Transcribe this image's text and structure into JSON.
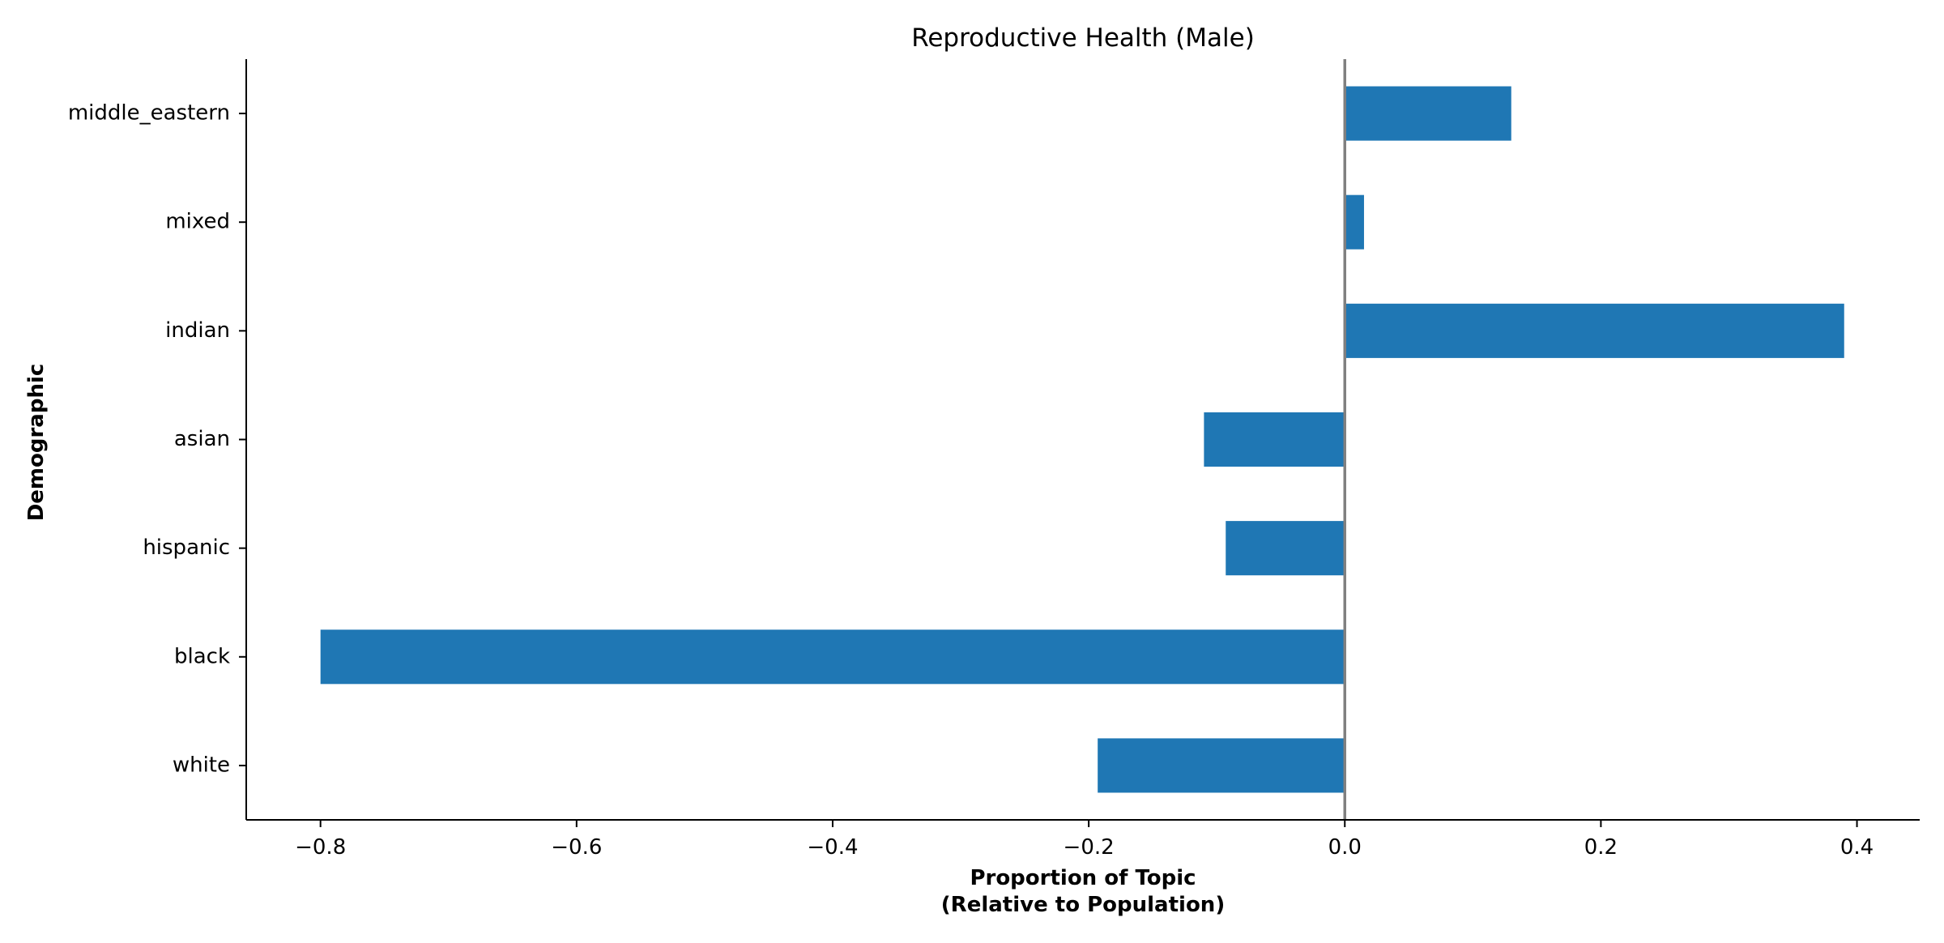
{
  "chart_data": {
    "type": "bar",
    "orientation": "horizontal",
    "title": "Reproductive Health (Male)",
    "xlabel_lines": [
      "Proportion of Topic",
      "(Relative to Population)"
    ],
    "ylabel": "Demographic",
    "categories": [
      "middle_eastern",
      "mixed",
      "indian",
      "asian",
      "hispanic",
      "black",
      "white"
    ],
    "values": [
      0.13,
      0.015,
      0.39,
      -0.11,
      -0.093,
      -0.8,
      -0.193
    ],
    "xlim": [
      -0.858,
      0.449
    ],
    "xticks": [
      -0.8,
      -0.6,
      -0.4,
      -0.2,
      0.0,
      0.2,
      0.4
    ],
    "xtick_labels": [
      "−0.8",
      "−0.6",
      "−0.4",
      "−0.2",
      "0.0",
      "0.2",
      "0.4"
    ],
    "zero_line": true,
    "grid": false,
    "colors": {
      "bar": "#1f77b4",
      "zero_line": "#808080",
      "axis": "#000000"
    }
  }
}
